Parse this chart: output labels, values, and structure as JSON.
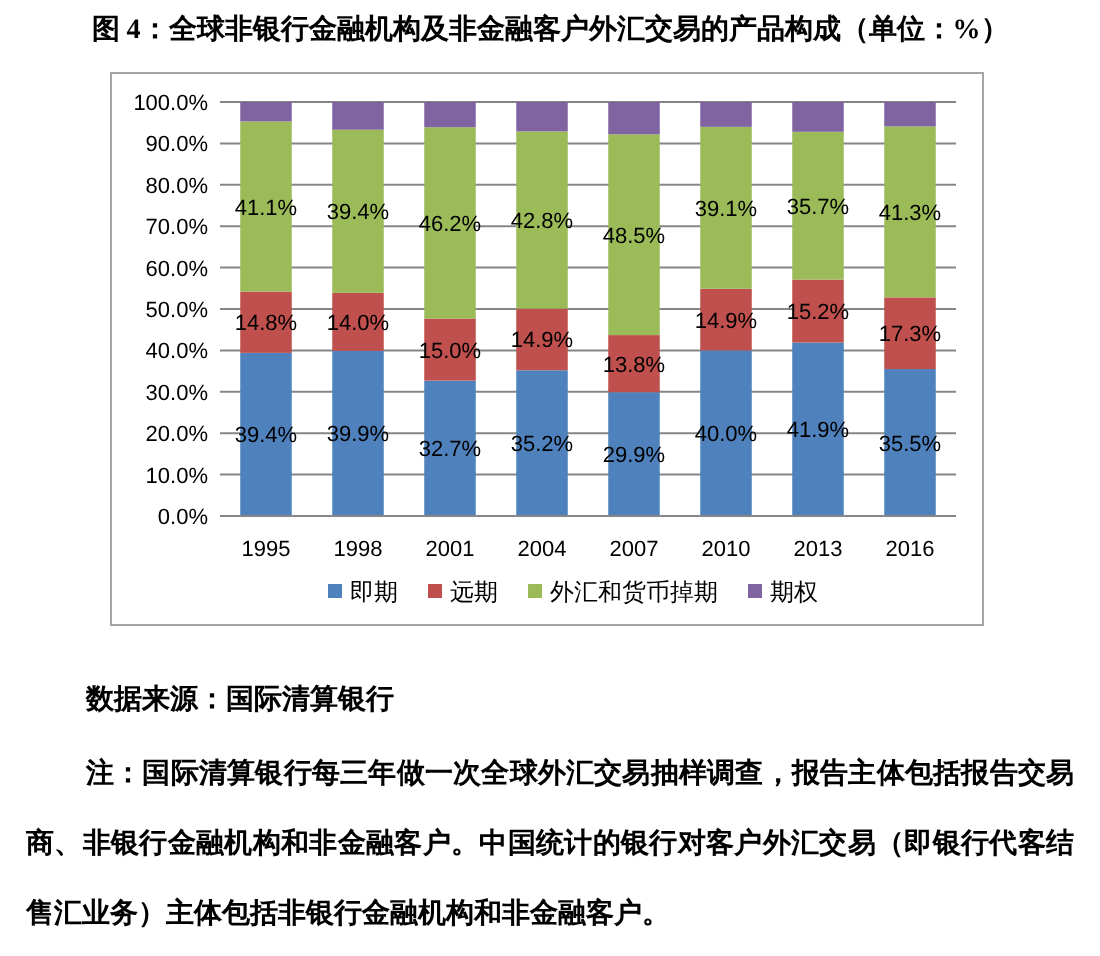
{
  "chart_data": {
    "type": "bar",
    "stacked": true,
    "title": "图 4：全球非银行金融机构及非金融客户外汇交易的产品构成（单位：%）",
    "categories": [
      "1995",
      "1998",
      "2001",
      "2004",
      "2007",
      "2010",
      "2013",
      "2016"
    ],
    "series": [
      {
        "name": "即期",
        "color": "#4f81bd",
        "values": [
          39.4,
          39.9,
          32.7,
          35.2,
          29.9,
          40.0,
          41.9,
          35.5
        ],
        "value_labels": [
          "39.4%",
          "39.9%",
          "32.7%",
          "35.2%",
          "29.9%",
          "40.0%",
          "41.9%",
          "35.5%"
        ]
      },
      {
        "name": "远期",
        "color": "#c0504d",
        "values": [
          14.8,
          14.0,
          15.0,
          14.9,
          13.8,
          14.9,
          15.2,
          17.3
        ],
        "value_labels": [
          "14.8%",
          "14.0%",
          "15.0%",
          "14.9%",
          "13.8%",
          "14.9%",
          "15.2%",
          "17.3%"
        ]
      },
      {
        "name": "外汇和货币掉期",
        "color": "#9bbb59",
        "values": [
          41.1,
          39.4,
          46.2,
          42.8,
          48.5,
          39.1,
          35.7,
          41.3
        ],
        "value_labels": [
          "41.1%",
          "39.4%",
          "46.2%",
          "42.8%",
          "48.5%",
          "39.1%",
          "35.7%",
          "41.3%"
        ]
      },
      {
        "name": "期权",
        "color": "#8064a2",
        "values": [
          4.7,
          6.7,
          6.1,
          7.1,
          7.8,
          6.0,
          7.2,
          5.9
        ]
      }
    ],
    "ylim": [
      0,
      100
    ],
    "yticks": [
      {
        "value": 0,
        "label": "0.0%"
      },
      {
        "value": 10,
        "label": "10.0%"
      },
      {
        "value": 20,
        "label": "20.0%"
      },
      {
        "value": 30,
        "label": "30.0%"
      },
      {
        "value": 40,
        "label": "40.0%"
      },
      {
        "value": 50,
        "label": "50.0%"
      },
      {
        "value": 60,
        "label": "60.0%"
      },
      {
        "value": 70,
        "label": "70.0%"
      },
      {
        "value": 80,
        "label": "80.0%"
      },
      {
        "value": 90,
        "label": "90.0%"
      },
      {
        "value": 100,
        "label": "100.0%"
      }
    ],
    "grid": "y",
    "legend": "bottom",
    "annotations": [
      "数据来源：国际清算银行",
      "注：国际清算银行每三年做一次全球外汇交易抽样调查，报告主体包括报告交易商、非银行金融机构和非金融客户。中国统计的银行对客户外汇交易（即银行代客结售汇业务）主体包括非银行金融机构和非金融客户。"
    ]
  }
}
